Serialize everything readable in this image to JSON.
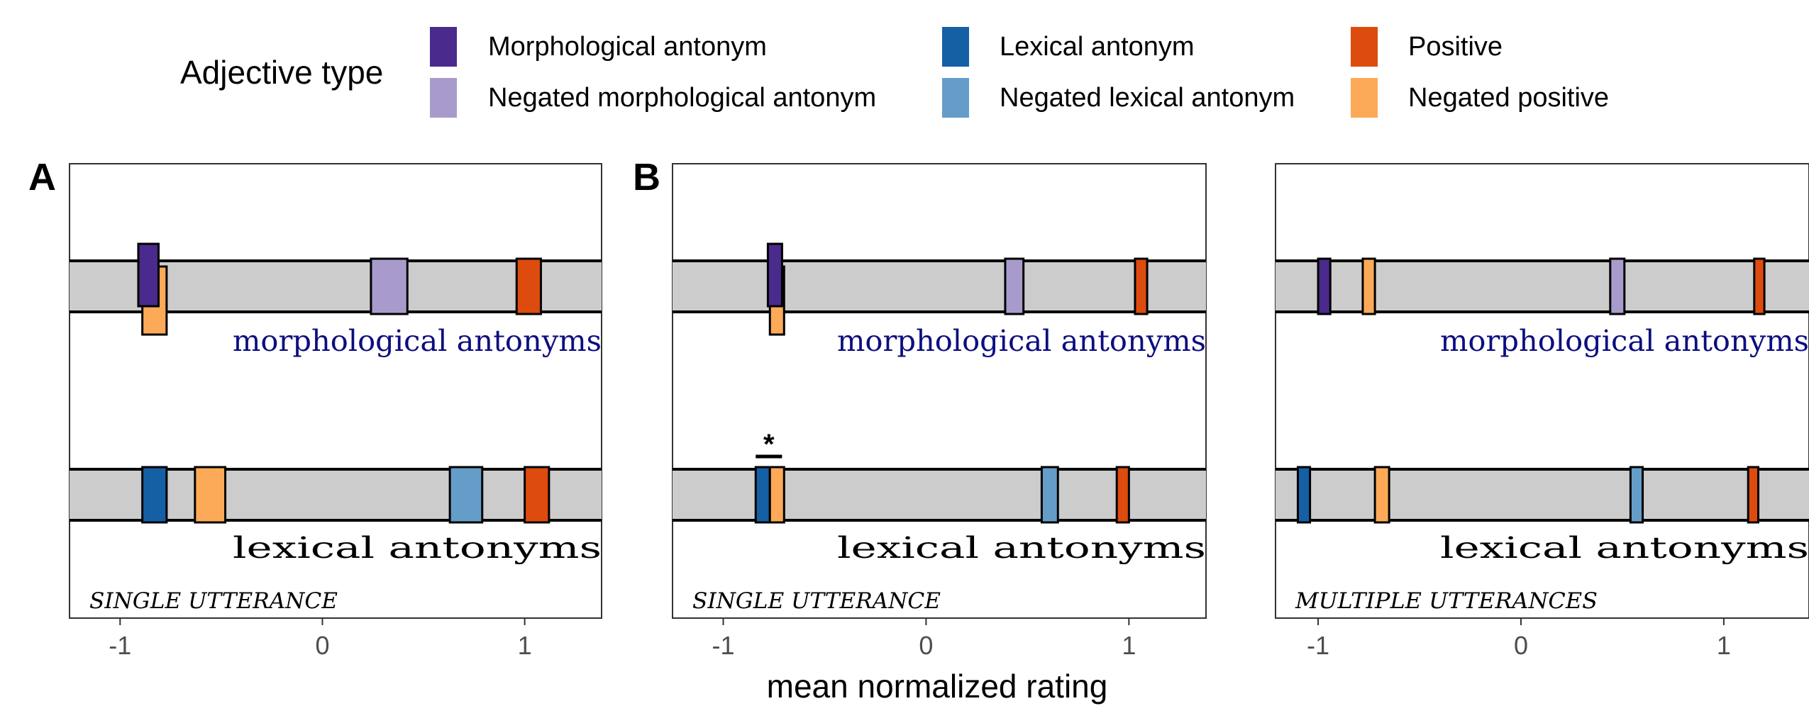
{
  "legend": {
    "title": "Adjective type",
    "placement": "top",
    "entries": [
      {
        "key": "morph",
        "label": "Morphological antonym",
        "color": "#4a2a8c"
      },
      {
        "key": "neg_morph",
        "label": "Negated morphological antonym",
        "color": "#a89bcc"
      },
      {
        "key": "lex",
        "label": "Lexical antonym",
        "color": "#155fa5"
      },
      {
        "key": "neg_lex",
        "label": "Negated lexical antonym",
        "color": "#659dc9"
      },
      {
        "key": "pos",
        "label": "Positive",
        "color": "#de4b0e"
      },
      {
        "key": "neg_pos",
        "label": "Negated positive",
        "color": "#fcaa57"
      }
    ]
  },
  "xlabel": "mean normalized rating",
  "panel_letters": [
    "A",
    "B"
  ],
  "row_labels": [
    "morphological antonyms",
    "lexical antonyms"
  ],
  "significance_marker": "*",
  "band_color": "#cccccc",
  "chart_data": [
    {
      "type": "interval",
      "panel": "A",
      "condition": "SINGLE UTTERANCE",
      "xlim": [
        -1.25,
        1.38
      ],
      "xticks": [
        -1,
        0,
        1
      ],
      "grid": false,
      "rows": [
        {
          "label": "morphological antonyms",
          "items": [
            {
              "type": "morph",
              "low": -0.91,
              "high": -0.81,
              "layer": "top"
            },
            {
              "type": "neg_pos",
              "low": -0.89,
              "high": -0.77,
              "layer": "bottom"
            },
            {
              "type": "neg_morph",
              "low": 0.24,
              "high": 0.42,
              "layer": "middle"
            },
            {
              "type": "pos",
              "low": 0.96,
              "high": 1.08,
              "layer": "middle"
            }
          ]
        },
        {
          "label": "lexical antonyms",
          "items": [
            {
              "type": "lex",
              "low": -0.89,
              "high": -0.77,
              "layer": "middle"
            },
            {
              "type": "neg_pos",
              "low": -0.63,
              "high": -0.48,
              "layer": "middle"
            },
            {
              "type": "neg_lex",
              "low": 0.63,
              "high": 0.79,
              "layer": "middle"
            },
            {
              "type": "pos",
              "low": 1.0,
              "high": 1.12,
              "layer": "middle"
            }
          ]
        }
      ]
    },
    {
      "type": "interval",
      "panel": "B",
      "condition": "SINGLE UTTERANCE",
      "xlim": [
        -1.25,
        1.38
      ],
      "xticks": [
        -1,
        0,
        1
      ],
      "grid": false,
      "rows": [
        {
          "label": "morphological antonyms",
          "items": [
            {
              "type": "morph",
              "low": -0.78,
              "high": -0.71,
              "layer": "top"
            },
            {
              "type": "neg_pos",
              "low": -0.77,
              "high": -0.7,
              "layer": "bottom"
            },
            {
              "type": "neg_morph",
              "low": 0.39,
              "high": 0.48,
              "layer": "middle"
            },
            {
              "type": "pos",
              "low": 1.03,
              "high": 1.09,
              "layer": "middle"
            }
          ]
        },
        {
          "label": "lexical antonyms",
          "significance": [
            -0.84,
            -0.71
          ],
          "items": [
            {
              "type": "lex",
              "low": -0.84,
              "high": -0.77,
              "layer": "middle"
            },
            {
              "type": "neg_pos",
              "low": -0.77,
              "high": -0.7,
              "layer": "middle"
            },
            {
              "type": "neg_lex",
              "low": 0.57,
              "high": 0.65,
              "layer": "middle"
            },
            {
              "type": "pos",
              "low": 0.94,
              "high": 1.0,
              "layer": "middle"
            }
          ]
        }
      ]
    },
    {
      "type": "interval",
      "panel": "",
      "condition": "MULTIPLE UTTERANCES",
      "xlim": [
        -1.21,
        1.42
      ],
      "xticks": [
        -1,
        0,
        1
      ],
      "grid": false,
      "rows": [
        {
          "label": "morphological antonyms",
          "items": [
            {
              "type": "morph",
              "low": -1.0,
              "high": -0.94,
              "layer": "middle"
            },
            {
              "type": "neg_pos",
              "low": -0.78,
              "high": -0.72,
              "layer": "middle"
            },
            {
              "type": "neg_morph",
              "low": 0.44,
              "high": 0.51,
              "layer": "middle"
            },
            {
              "type": "pos",
              "low": 1.15,
              "high": 1.2,
              "layer": "middle"
            }
          ]
        },
        {
          "label": "lexical antonyms",
          "items": [
            {
              "type": "lex",
              "low": -1.1,
              "high": -1.04,
              "layer": "middle"
            },
            {
              "type": "neg_pos",
              "low": -0.72,
              "high": -0.65,
              "layer": "middle"
            },
            {
              "type": "neg_lex",
              "low": 0.54,
              "high": 0.6,
              "layer": "middle"
            },
            {
              "type": "pos",
              "low": 1.12,
              "high": 1.17,
              "layer": "middle"
            }
          ]
        }
      ]
    }
  ]
}
